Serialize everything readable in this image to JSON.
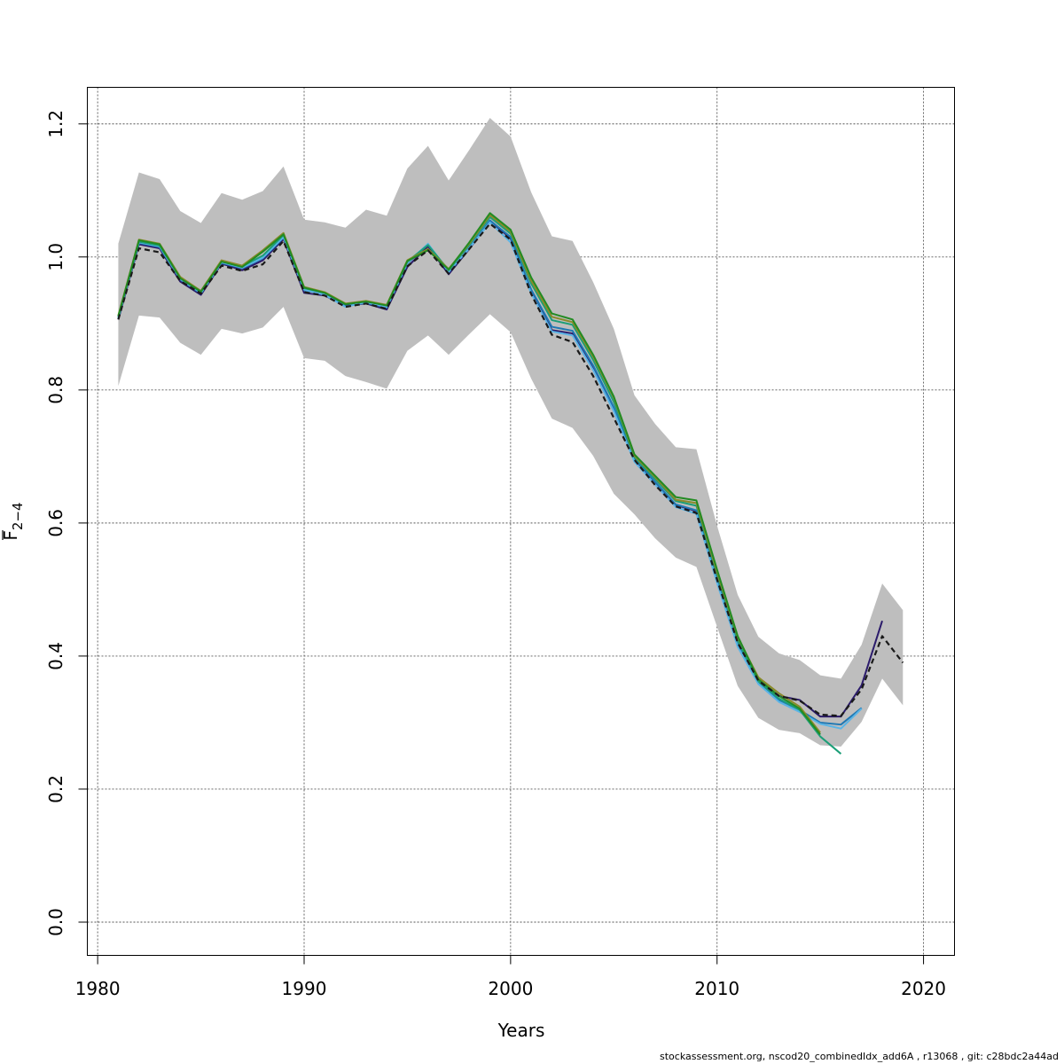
{
  "chart_data": {
    "type": "line",
    "xlabel": "Years",
    "ylabel": {
      "base": "F",
      "sub": "2−4"
    },
    "xlim": [
      1979.5,
      2021.5
    ],
    "ylim": [
      -0.05,
      1.255
    ],
    "xticks": [
      1980,
      1990,
      2000,
      2010,
      2020
    ],
    "yticks": [
      0.0,
      0.2,
      0.4,
      0.6,
      0.8,
      1.0,
      1.2
    ],
    "ytick_labels": [
      "0.0",
      "0.2",
      "0.4",
      "0.6",
      "0.8",
      "1.0",
      "1.2"
    ],
    "grid": true,
    "band": {
      "color": "#bebebe",
      "x": [
        1981,
        1982,
        1983,
        1984,
        1985,
        1986,
        1987,
        1988,
        1989,
        1990,
        1991,
        1992,
        1993,
        1994,
        1995,
        1996,
        1997,
        1998,
        1999,
        2000,
        2001,
        2002,
        2003,
        2004,
        2005,
        2006,
        2007,
        2008,
        2009,
        2010,
        2011,
        2012,
        2013,
        2014,
        2015,
        2016,
        2017,
        2018,
        2019
      ],
      "upper": [
        1.02,
        1.127,
        1.117,
        1.069,
        1.051,
        1.096,
        1.086,
        1.099,
        1.136,
        1.056,
        1.052,
        1.044,
        1.071,
        1.062,
        1.133,
        1.167,
        1.115,
        1.161,
        1.209,
        1.181,
        1.097,
        1.031,
        1.024,
        0.962,
        0.892,
        0.792,
        0.749,
        0.714,
        0.711,
        0.596,
        0.492,
        0.429,
        0.404,
        0.394,
        0.371,
        0.366,
        0.417,
        0.509,
        0.469
      ],
      "lower": [
        0.806,
        0.912,
        0.909,
        0.871,
        0.853,
        0.892,
        0.885,
        0.894,
        0.925,
        0.848,
        0.844,
        0.821,
        0.812,
        0.802,
        0.859,
        0.882,
        0.853,
        0.884,
        0.914,
        0.887,
        0.817,
        0.757,
        0.743,
        0.701,
        0.644,
        0.613,
        0.577,
        0.548,
        0.534,
        0.444,
        0.355,
        0.307,
        0.289,
        0.284,
        0.266,
        0.264,
        0.301,
        0.366,
        0.326
      ]
    },
    "series": [
      {
        "color": "#2b1b6b",
        "dash": false,
        "x": [
          1981,
          1982,
          1983,
          1984,
          1985,
          1986,
          1987,
          1988,
          1989,
          1990,
          1991,
          1992,
          1993,
          1994,
          1995,
          1996,
          1997,
          1998,
          1999,
          2000,
          2001,
          2002,
          2003,
          2004,
          2005,
          2006,
          2007,
          2008,
          2009,
          2010,
          2011,
          2012,
          2013,
          2014,
          2015,
          2016,
          2017,
          2018
        ],
        "values": [
          0.906,
          1.019,
          1.013,
          0.963,
          0.943,
          0.99,
          0.98,
          0.995,
          1.027,
          0.946,
          0.942,
          0.927,
          0.93,
          0.921,
          0.985,
          1.016,
          0.974,
          1.012,
          1.054,
          1.028,
          0.948,
          0.89,
          0.885,
          0.832,
          0.77,
          0.696,
          0.66,
          0.627,
          0.618,
          0.515,
          0.42,
          0.364,
          0.34,
          0.334,
          0.309,
          0.309,
          0.356,
          0.453
        ]
      },
      {
        "color": "#1f78b4",
        "dash": false,
        "x": [
          1981,
          1982,
          1983,
          1984,
          1985,
          1986,
          1987,
          1988,
          1989,
          1990,
          1991,
          1992,
          1993,
          1994,
          1995,
          1996,
          1997,
          1998,
          1999,
          2000,
          2001,
          2002,
          2003,
          2004,
          2005,
          2006,
          2007,
          2008,
          2009,
          2010,
          2011,
          2012,
          2013,
          2014,
          2015,
          2016,
          2017
        ],
        "values": [
          0.908,
          1.021,
          1.015,
          0.966,
          0.945,
          0.991,
          0.983,
          0.998,
          1.029,
          0.95,
          0.944,
          0.926,
          0.931,
          0.924,
          0.99,
          1.019,
          0.977,
          1.014,
          1.055,
          1.03,
          0.951,
          0.895,
          0.889,
          0.837,
          0.774,
          0.697,
          0.662,
          0.628,
          0.619,
          0.517,
          0.418,
          0.361,
          0.334,
          0.319,
          0.3,
          0.297,
          0.322
        ]
      },
      {
        "color": "#5ab4e6",
        "dash": false,
        "x": [
          1981,
          1982,
          1983,
          1984,
          1985,
          1986,
          1987,
          1988,
          1989,
          1990,
          1991,
          1992,
          1993,
          1994,
          1995,
          1996,
          1997,
          1998,
          1999,
          2000,
          2001,
          2002,
          2003,
          2004,
          2005,
          2006,
          2007,
          2008,
          2009,
          2010,
          2011,
          2012,
          2013,
          2014,
          2015,
          2016,
          2017
        ],
        "values": [
          0.909,
          1.022,
          1.016,
          0.967,
          0.946,
          0.992,
          0.984,
          0.999,
          1.03,
          0.951,
          0.943,
          0.925,
          0.932,
          0.925,
          0.991,
          1.02,
          0.978,
          1.013,
          1.052,
          1.022,
          0.945,
          0.888,
          0.882,
          0.83,
          0.768,
          0.692,
          0.658,
          0.624,
          0.614,
          0.51,
          0.414,
          0.358,
          0.331,
          0.316,
          0.298,
          0.291,
          0.321
        ]
      },
      {
        "color": "#1b9e77",
        "dash": false,
        "x": [
          1981,
          1982,
          1983,
          1984,
          1985,
          1986,
          1987,
          1988,
          1989,
          1990,
          1991,
          1992,
          1993,
          1994,
          1995,
          1996,
          1997,
          1998,
          1999,
          2000,
          2001,
          2002,
          2003,
          2004,
          2005,
          2006,
          2007,
          2008,
          2009,
          2010,
          2011,
          2012,
          2013,
          2014,
          2015,
          2016
        ],
        "values": [
          0.91,
          1.023,
          1.017,
          0.969,
          0.947,
          0.994,
          0.986,
          1.002,
          1.033,
          0.953,
          0.946,
          0.929,
          0.933,
          0.927,
          0.993,
          1.018,
          0.98,
          1.018,
          1.06,
          1.035,
          0.96,
          0.905,
          0.898,
          0.845,
          0.782,
          0.699,
          0.666,
          0.633,
          0.626,
          0.522,
          0.423,
          0.362,
          0.336,
          0.319,
          0.279,
          0.253
        ]
      },
      {
        "color": "#8a8a2a",
        "dash": false,
        "x": [
          1981,
          1982,
          1983,
          1984,
          1985,
          1986,
          1987,
          1988,
          1989,
          1990,
          1991,
          1992,
          1993,
          1994,
          1995,
          1996,
          1997,
          1998,
          1999,
          2000,
          2001,
          2002,
          2003,
          2004,
          2005,
          2006,
          2007,
          2008,
          2009,
          2010,
          2011,
          2012,
          2013,
          2014,
          2015
        ],
        "values": [
          0.912,
          1.026,
          1.02,
          0.97,
          0.949,
          0.995,
          0.987,
          1.01,
          1.036,
          0.955,
          0.947,
          0.93,
          0.934,
          0.928,
          0.995,
          1.012,
          0.982,
          1.02,
          1.063,
          1.038,
          0.964,
          0.91,
          0.902,
          0.85,
          0.788,
          0.701,
          0.669,
          0.635,
          0.63,
          0.526,
          0.428,
          0.368,
          0.344,
          0.324,
          0.285
        ]
      },
      {
        "color": "#228b22",
        "dash": false,
        "x": [
          1981,
          1982,
          1983,
          1984,
          1985,
          1986,
          1987,
          1988,
          1989,
          1990,
          1991,
          1992,
          1993,
          1994,
          1995,
          1996,
          1997,
          1998,
          1999,
          2000,
          2001,
          2002,
          2003,
          2004,
          2005,
          2006,
          2007,
          2008,
          2009,
          2010,
          2011,
          2012,
          2013,
          2014,
          2015
        ],
        "values": [
          0.911,
          1.025,
          1.019,
          0.968,
          0.948,
          0.993,
          0.985,
          1.008,
          1.034,
          0.954,
          0.946,
          0.929,
          0.933,
          0.927,
          0.994,
          1.01,
          0.981,
          1.022,
          1.066,
          1.041,
          0.969,
          0.915,
          0.906,
          0.853,
          0.79,
          0.703,
          0.671,
          0.639,
          0.634,
          0.53,
          0.43,
          0.365,
          0.34,
          0.321,
          0.282
        ]
      },
      {
        "color": "#1a1a1a",
        "dash": true,
        "x": [
          1981,
          1982,
          1983,
          1984,
          1985,
          1986,
          1987,
          1988,
          1989,
          1990,
          1991,
          1992,
          1993,
          1994,
          1995,
          1996,
          1997,
          1998,
          1999,
          2000,
          2001,
          2002,
          2003,
          2004,
          2005,
          2006,
          2007,
          2008,
          2009,
          2010,
          2011,
          2012,
          2013,
          2014,
          2015,
          2016,
          2017,
          2018,
          2019
        ],
        "values": [
          0.906,
          1.013,
          1.007,
          0.964,
          0.945,
          0.987,
          0.979,
          0.989,
          1.024,
          0.947,
          0.942,
          0.925,
          0.93,
          0.922,
          0.986,
          1.01,
          0.975,
          1.012,
          1.05,
          1.026,
          0.944,
          0.883,
          0.872,
          0.821,
          0.758,
          0.695,
          0.657,
          0.625,
          0.615,
          0.515,
          0.42,
          0.363,
          0.34,
          0.333,
          0.312,
          0.31,
          0.35,
          0.43,
          0.39
        ]
      }
    ]
  },
  "footer": "stockassessment.org, nscod20_combinedIdx_add6A , r13068 , git: c28bdc2a44ad"
}
